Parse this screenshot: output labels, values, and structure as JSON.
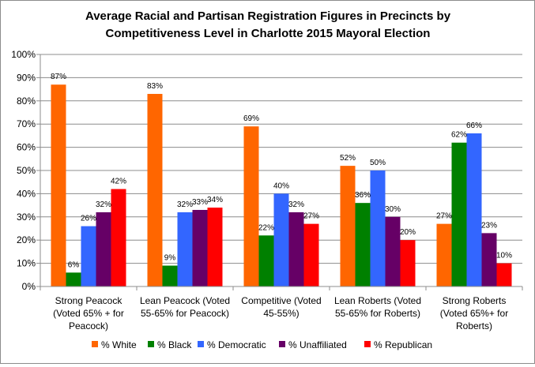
{
  "chart_data": {
    "type": "bar",
    "title": "Average Racial and Partisan Registration Figures in Precincts by Competitiveness Level in Charlotte 2015 Mayoral Election",
    "title_lines": [
      "Average Racial and Partisan Registration Figures in Precincts by",
      "Competitiveness Level in Charlotte 2015 Mayoral Election"
    ],
    "xlabel": "",
    "ylabel": "",
    "ylim": [
      0,
      100
    ],
    "ytick_labels": [
      "0%",
      "10%",
      "20%",
      "30%",
      "40%",
      "50%",
      "60%",
      "70%",
      "80%",
      "90%",
      "100%"
    ],
    "categories": [
      "Strong Peacock (Voted 65% + for Peacock)",
      "Lean Peacock (Voted 55-65% for Peacock)",
      "Competitive (Voted 45-55%)",
      "Lean Roberts (Voted 55-65% for Roberts)",
      "Strong Roberts (Voted 65%+ for Roberts)"
    ],
    "category_lines": [
      [
        "Strong Peacock",
        "(Voted 65% + for",
        "Peacock)"
      ],
      [
        "Lean Peacock (Voted",
        "55-65% for Peacock)"
      ],
      [
        "Competitive (Voted",
        "45-55%)"
      ],
      [
        "Lean Roberts (Voted",
        "55-65% for Roberts)"
      ],
      [
        "Strong Roberts",
        "(Voted 65%+ for",
        "Roberts)"
      ]
    ],
    "series": [
      {
        "name": "% White",
        "color": "#ff6600",
        "values": [
          87,
          83,
          69,
          52,
          27
        ]
      },
      {
        "name": "% Black",
        "color": "#008000",
        "values": [
          6,
          9,
          22,
          36,
          62
        ]
      },
      {
        "name": "% Democratic",
        "color": "#3366ff",
        "values": [
          26,
          32,
          40,
          50,
          66
        ]
      },
      {
        "name": "% Unaffiliated",
        "color": "#660066",
        "values": [
          32,
          33,
          32,
          30,
          23
        ]
      },
      {
        "name": "% Republican",
        "color": "#ff0000",
        "values": [
          42,
          34,
          27,
          20,
          10
        ]
      }
    ],
    "grid": true,
    "legend_position": "bottom"
  }
}
